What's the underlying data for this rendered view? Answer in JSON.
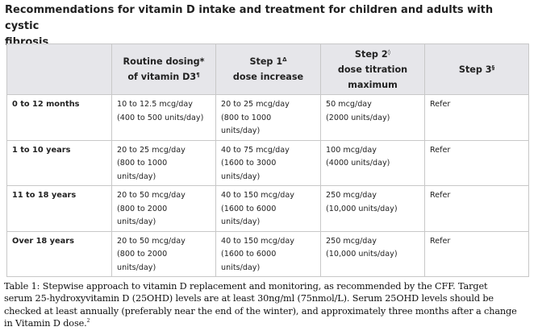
{
  "title": {
    "line1": "Recommendations for vitamin D intake and treatment for children and adults with cystic",
    "line2": "fibrosis"
  },
  "table": {
    "headers": [
      {
        "lines": [],
        "mark": ""
      },
      {
        "lines": [
          "Routine dosing*",
          "of vitamin D3"
        ],
        "mark": "¶"
      },
      {
        "lines": [
          "Step 1",
          "dose increase"
        ],
        "mark": "Δ"
      },
      {
        "lines": [
          "Step 2",
          "dose titration",
          "maximum"
        ],
        "mark": "◊"
      },
      {
        "lines": [
          "Step 3"
        ],
        "mark": "§"
      }
    ],
    "rows": [
      {
        "label": "0 to 12 months",
        "cells": [
          [
            "10 to 12.5 mcg/day",
            "(400 to 500 units/day)"
          ],
          [
            "20 to 25 mcg/day",
            "(800 to 1000",
            "units/day)"
          ],
          [
            "50 mcg/day",
            "(2000 units/day)"
          ],
          [
            "Refer"
          ]
        ]
      },
      {
        "label": "1 to 10 years",
        "cells": [
          [
            "20 to 25 mcg/day",
            "(800 to 1000",
            "units/day)"
          ],
          [
            "40 to 75 mcg/day",
            "(1600 to 3000",
            "units/day)"
          ],
          [
            "100 mcg/day",
            "(4000 units/day)"
          ],
          [
            "Refer"
          ]
        ]
      },
      {
        "label": "11 to 18 years",
        "cells": [
          [
            "20 to 50 mcg/day",
            "(800 to 2000",
            "units/day)"
          ],
          [
            "40 to 150 mcg/day",
            "(1600 to 6000",
            "units/day)"
          ],
          [
            "250 mcg/day",
            "(10,000 units/day)"
          ],
          [
            "Refer"
          ]
        ]
      },
      {
        "label": "Over 18 years",
        "cells": [
          [
            "20 to 50 mcg/day",
            "(800 to 2000",
            "units/day)"
          ],
          [
            "40 to 150 mcg/day",
            "(1600 to 6000",
            "units/day)"
          ],
          [
            "250 mcg/day",
            "(10,000 units/day)"
          ],
          [
            "Refer"
          ]
        ]
      }
    ]
  },
  "caption": {
    "lines": [
      "Table 1: Stepwise approach to vitamin D replacement and monitoring, as recommended by the CFF. Target",
      "serum 25-hydroxyvitamin D (25OHD) levels are at least 30ng/ml (75nmol/L). Serum 25OHD levels should be",
      "checked at least annually (preferably near the end of the winter), and approximately three months after a change",
      "in Vitamin D dose."
    ],
    "ref_mark": "2"
  },
  "colors": {
    "header_bg": "#e6e6ea",
    "border": "#c8c8c8",
    "text": "#222222"
  }
}
